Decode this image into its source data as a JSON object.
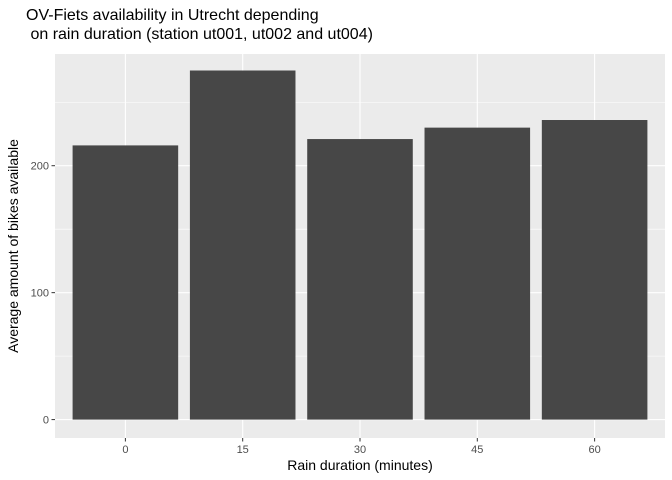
{
  "chart_data": {
    "type": "bar",
    "title_lines": [
      "OV-Fiets availability in Utrecht depending",
      " on rain duration (station ut001, ut002 and ut004)"
    ],
    "xlabel": "Rain duration (minutes)",
    "ylabel": "Average amount of bikes available",
    "categories": [
      "0",
      "15",
      "30",
      "45",
      "60"
    ],
    "values": [
      216,
      275,
      221,
      230,
      236
    ],
    "ylim": [
      -14.5,
      288
    ],
    "yticks": [
      0,
      100,
      200
    ],
    "grid": true,
    "colors": {
      "bar": "#474747",
      "panel": "#ebebeb",
      "grid_major": "#ffffff",
      "tick_text": "#4d4d4d"
    }
  }
}
